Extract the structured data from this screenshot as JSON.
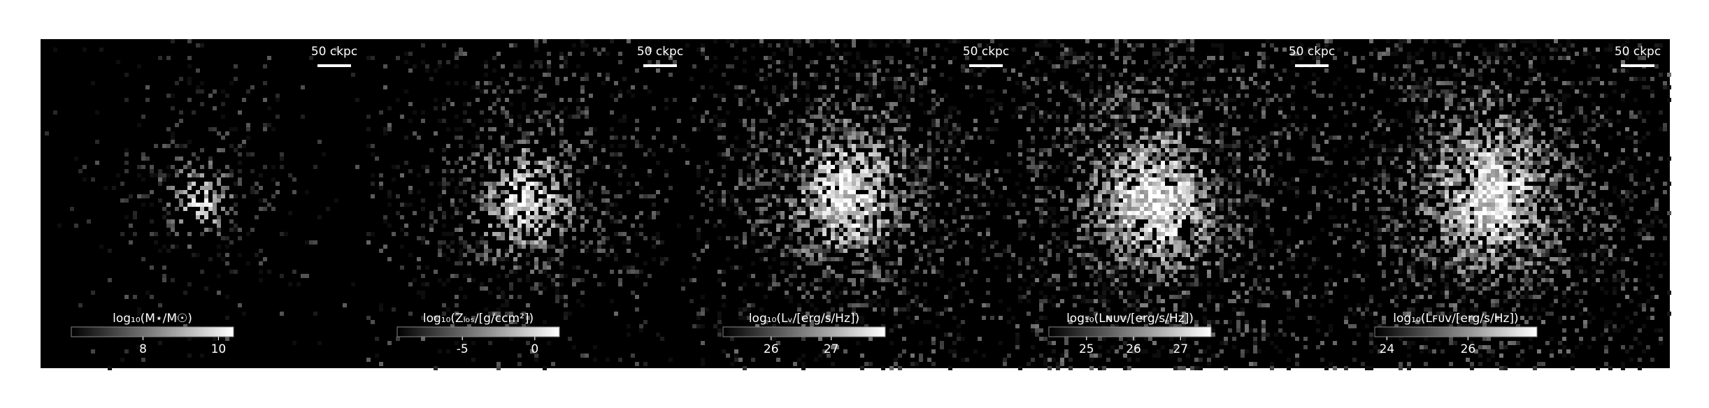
{
  "chart_data": [
    {
      "type": "image",
      "scalebar_label": "50 ckpc",
      "colorbar_label": "log₁₀(M⋆/M☉)",
      "clim": [
        6.1,
        10.4
      ],
      "cticks": [
        8,
        10
      ],
      "colormap": "gray"
    },
    {
      "type": "image",
      "scalebar_label": "50 ckpc",
      "colorbar_label": "log₁₀(Zₗₒₛ/[g/ccm²])",
      "clim": [
        -9.5,
        1.7
      ],
      "cticks": [
        -5,
        0
      ],
      "colormap": "gray"
    },
    {
      "type": "image",
      "scalebar_label": "50 ckpc",
      "colorbar_label": "log₁₀(Lᵥ/[erg/s/Hz])",
      "clim": [
        25.2,
        27.9
      ],
      "cticks": [
        26,
        27
      ],
      "colormap": "gray"
    },
    {
      "type": "image",
      "scalebar_label": "50 ckpc",
      "colorbar_label": "log₁₀(Lɴᴜᴠ/[erg/s/Hz])",
      "clim": [
        24.2,
        27.65
      ],
      "cticks": [
        25,
        26,
        27
      ],
      "colormap": "gray"
    },
    {
      "type": "image",
      "scalebar_label": "50 ckpc",
      "colorbar_label": "log₁₀(Lꜰᴜᴠ/[erg/s/Hz])",
      "clim": [
        23.7,
        27.7
      ],
      "cticks": [
        24,
        26
      ],
      "colormap": "gray"
    }
  ]
}
